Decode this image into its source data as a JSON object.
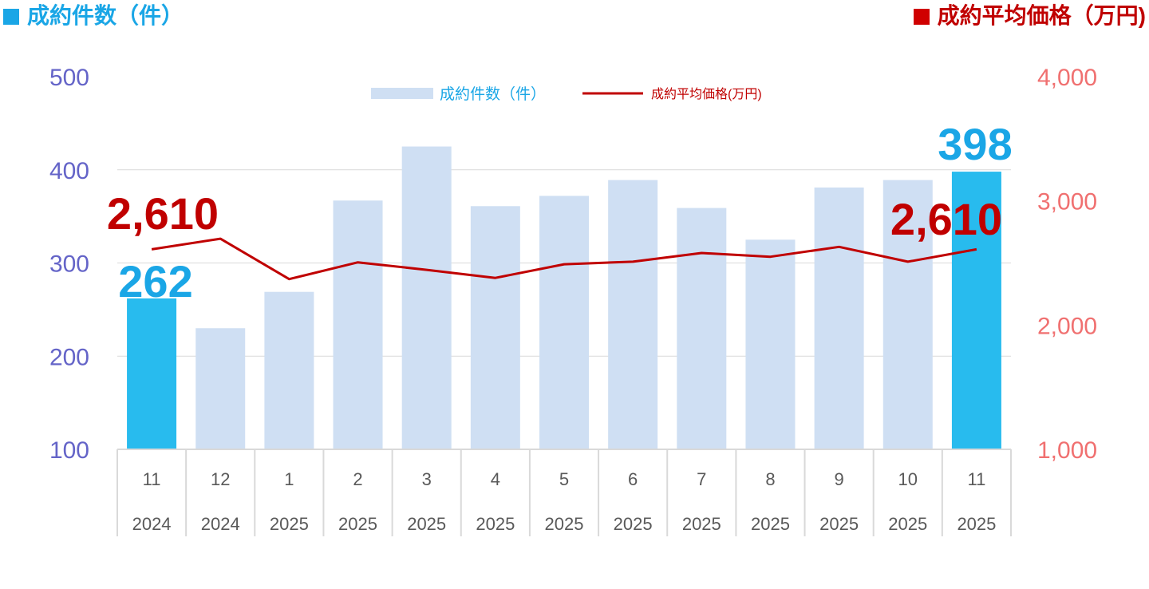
{
  "header": {
    "left_title": "成約件数（件）",
    "right_title": "成約平均価格（万円)"
  },
  "colors": {
    "bar": "#cfdff3",
    "bar_highlight": "#28bbee",
    "line": "#c00000",
    "left_axis_text": "#6464c8",
    "right_axis_text": "#f07070",
    "count_label": "#1aa6e6",
    "price_label": "#c00000",
    "grid": "#d9d9d9"
  },
  "chart_data": {
    "type": "bar",
    "categories": [
      {
        "month": "11",
        "year": "2024"
      },
      {
        "month": "12",
        "year": "2024"
      },
      {
        "month": "1",
        "year": "2025"
      },
      {
        "month": "2",
        "year": "2025"
      },
      {
        "month": "3",
        "year": "2025"
      },
      {
        "month": "4",
        "year": "2025"
      },
      {
        "month": "5",
        "year": "2025"
      },
      {
        "month": "6",
        "year": "2025"
      },
      {
        "month": "7",
        "year": "2025"
      },
      {
        "month": "8",
        "year": "2025"
      },
      {
        "month": "9",
        "year": "2025"
      },
      {
        "month": "10",
        "year": "2025"
      },
      {
        "month": "11",
        "year": "2025"
      }
    ],
    "series": [
      {
        "name": "成約件数（件）",
        "type": "bar",
        "axis": "left",
        "values": [
          262,
          230,
          269,
          367,
          425,
          361,
          372,
          389,
          359,
          325,
          381,
          389,
          398
        ]
      },
      {
        "name": "成約平均価格(万円)",
        "type": "line",
        "axis": "right",
        "values": [
          2610,
          2695,
          2370,
          2505,
          2445,
          2380,
          2490,
          2510,
          2580,
          2550,
          2630,
          2510,
          2610
        ]
      }
    ],
    "highlighted_indices": [
      0,
      12
    ],
    "left_axis": {
      "min": 100,
      "max": 500,
      "ticks": [
        "100",
        "200",
        "300",
        "400",
        "500"
      ]
    },
    "right_axis": {
      "min": 1000,
      "max": 4000,
      "ticks": [
        "1,000",
        "2,000",
        "3,000",
        "4,000"
      ]
    },
    "annotations": {
      "count_first": "262",
      "count_last": "398",
      "price_first": "2,610",
      "price_last": "2,610"
    },
    "grid": true,
    "legend_position": "top-center"
  }
}
